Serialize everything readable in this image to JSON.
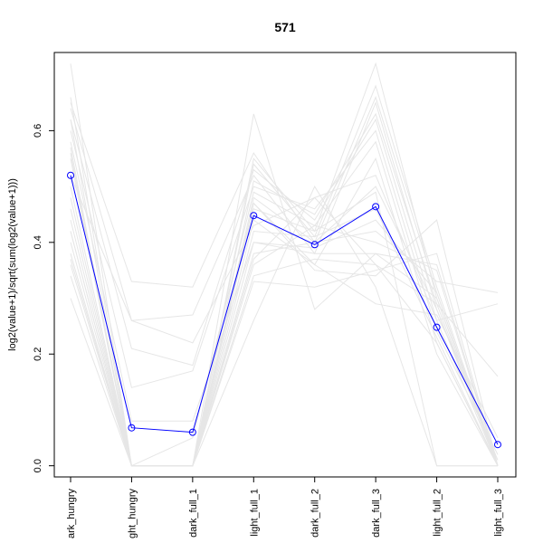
{
  "chart_data": {
    "type": "line",
    "title": "571",
    "ylabel": "log2(value+1)/sqrt(sum(log2(value+1)))",
    "xlabel": "",
    "categories": [
      "dark_hungry",
      "light_hungry",
      "dark_full_1",
      "light_full_1",
      "dark_full_2",
      "dark_full_3",
      "light_full_2",
      "light_full_3"
    ],
    "category_display": [
      "ark_hungry",
      "ght_hungry",
      "dark_full_1",
      "light_full_1",
      "dark_full_2",
      "dark_full_3",
      "light_full_2",
      "light_full_3"
    ],
    "ylim": [
      -0.02,
      0.74
    ],
    "yticks": [
      0.0,
      0.2,
      0.4,
      0.6
    ],
    "ytick_labels": [
      "0.0",
      "0.2",
      "0.4",
      "0.6"
    ],
    "grid": false,
    "highlight_color": "#0000ff",
    "background_color": "#e6e6e6",
    "series": [
      {
        "highlight": true,
        "values": [
          0.52,
          0.068,
          0.06,
          0.448,
          0.396,
          0.464,
          0.248,
          0.038
        ]
      },
      {
        "values": [
          0.72,
          0.0,
          0.0,
          0.55,
          0.42,
          0.72,
          0.3,
          0.0
        ]
      },
      {
        "values": [
          0.65,
          0.33,
          0.32,
          0.56,
          0.4,
          0.66,
          0.31,
          0.0
        ]
      },
      {
        "values": [
          0.64,
          0.26,
          0.27,
          0.52,
          0.38,
          0.65,
          0.28,
          0.01
        ]
      },
      {
        "values": [
          0.62,
          0.21,
          0.18,
          0.53,
          0.44,
          0.62,
          0.26,
          0.0
        ]
      },
      {
        "values": [
          0.6,
          0.14,
          0.17,
          0.5,
          0.46,
          0.6,
          0.24,
          0.02
        ]
      },
      {
        "values": [
          0.57,
          0.0,
          0.05,
          0.49,
          0.43,
          0.58,
          0.22,
          0.0
        ]
      },
      {
        "values": [
          0.55,
          0.0,
          0.0,
          0.47,
          0.36,
          0.55,
          0.2,
          0.0
        ]
      },
      {
        "values": [
          0.52,
          0.26,
          0.22,
          0.43,
          0.48,
          0.52,
          0.26,
          0.29
        ]
      },
      {
        "values": [
          0.5,
          0.0,
          0.0,
          0.48,
          0.4,
          0.5,
          0.28,
          0.0
        ]
      },
      {
        "values": [
          0.46,
          0.0,
          0.0,
          0.46,
          0.42,
          0.49,
          0.0,
          0.0
        ]
      },
      {
        "values": [
          0.44,
          0.0,
          0.0,
          0.42,
          0.41,
          0.46,
          0.23,
          0.0
        ]
      },
      {
        "values": [
          0.42,
          0.0,
          0.0,
          0.4,
          0.39,
          0.44,
          0.31,
          0.0
        ]
      },
      {
        "values": [
          0.4,
          0.0,
          0.0,
          0.38,
          0.4,
          0.42,
          0.33,
          0.31
        ]
      },
      {
        "values": [
          0.38,
          0.0,
          0.0,
          0.36,
          0.43,
          0.4,
          0.35,
          0.0
        ]
      },
      {
        "values": [
          0.37,
          0.0,
          0.0,
          0.63,
          0.28,
          0.38,
          0.36,
          0.0
        ]
      },
      {
        "values": [
          0.36,
          0.0,
          0.0,
          0.34,
          0.37,
          0.36,
          0.29,
          0.16
        ]
      },
      {
        "values": [
          0.34,
          0.0,
          0.0,
          0.33,
          0.32,
          0.35,
          0.38,
          0.0
        ]
      },
      {
        "values": [
          0.3,
          0.0,
          0.0,
          0.47,
          0.35,
          0.34,
          0.44,
          0.0
        ]
      },
      {
        "values": [
          0.42,
          0.0,
          0.0,
          0.26,
          0.5,
          0.32,
          0.0,
          0.0
        ]
      },
      {
        "values": [
          0.62,
          0.0,
          0.0,
          0.37,
          0.48,
          0.36,
          0.22,
          0.0
        ]
      },
      {
        "values": [
          0.58,
          0.08,
          0.08,
          0.4,
          0.38,
          0.38,
          0.3,
          0.0
        ]
      },
      {
        "values": [
          0.48,
          0.0,
          0.0,
          0.44,
          0.36,
          0.29,
          0.27,
          0.05
        ]
      },
      {
        "values": [
          0.66,
          0.0,
          0.0,
          0.54,
          0.41,
          0.68,
          0.32,
          0.0
        ]
      },
      {
        "values": [
          0.56,
          0.0,
          0.0,
          0.51,
          0.45,
          0.63,
          0.29,
          0.0
        ]
      }
    ]
  }
}
